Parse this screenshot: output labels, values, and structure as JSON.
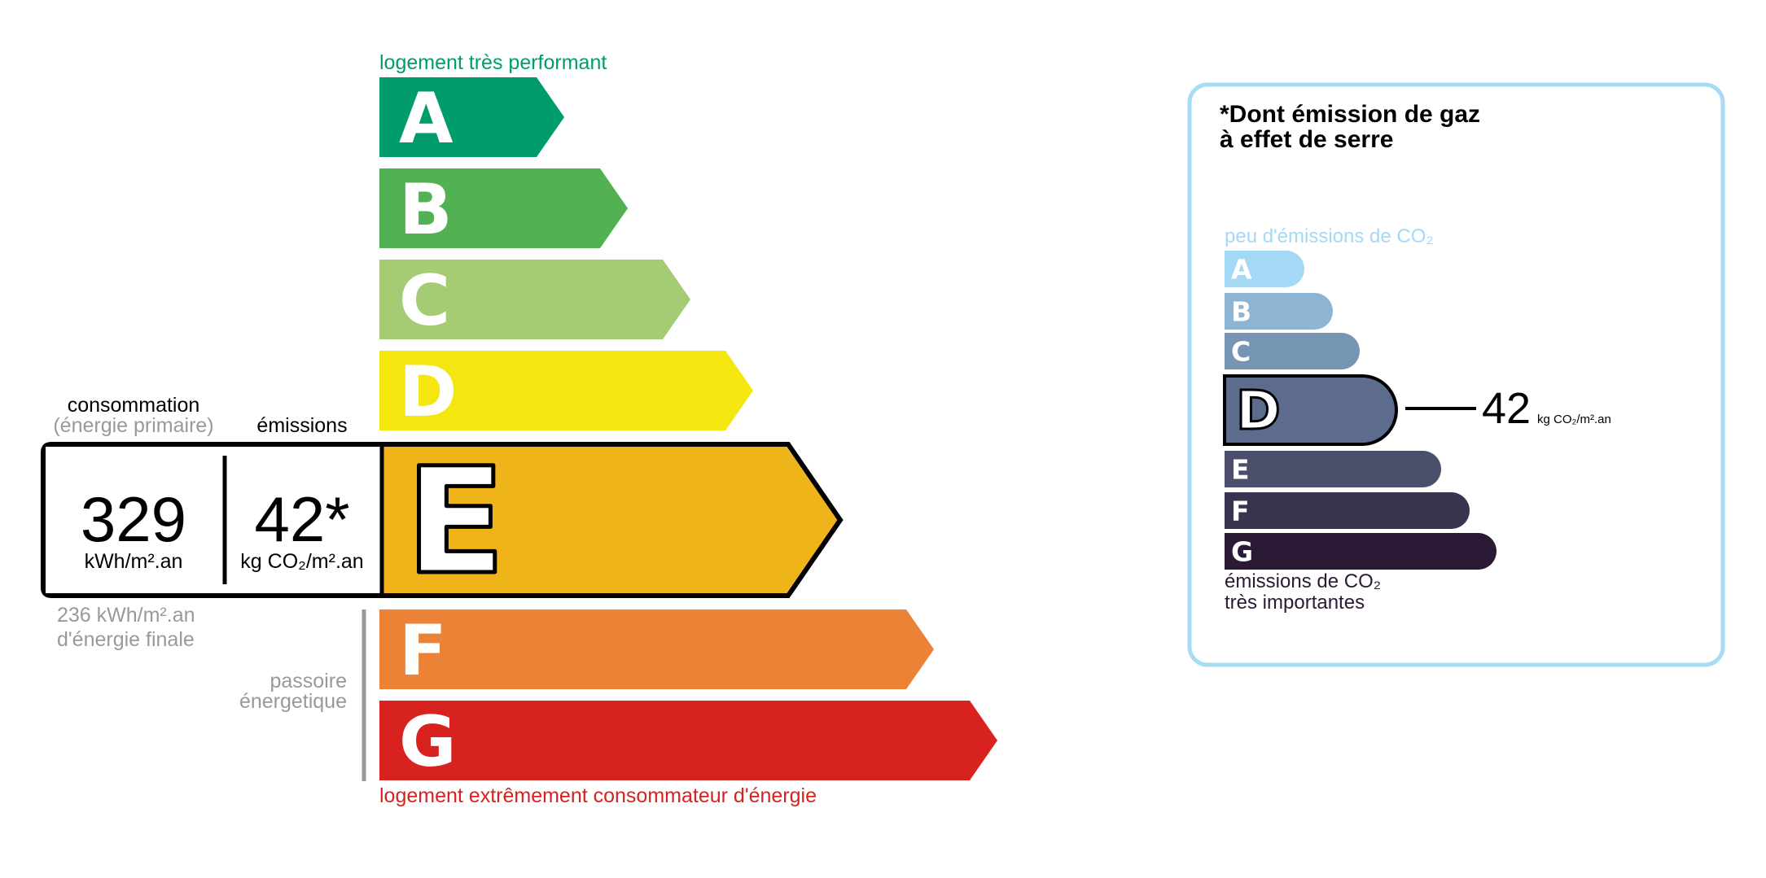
{
  "energy": {
    "top_label": "logement très performant",
    "bottom_label": "logement extrêmement consommateur d'énergie",
    "classes": [
      {
        "letter": "A",
        "color": "#009c6d"
      },
      {
        "letter": "B",
        "color": "#52b153"
      },
      {
        "letter": "C",
        "color": "#a5cc74"
      },
      {
        "letter": "D",
        "color": "#f4e70f"
      },
      {
        "letter": "E",
        "color": "#f0b41b"
      },
      {
        "letter": "F",
        "color": "#eb8235"
      },
      {
        "letter": "G",
        "color": "#d7221f"
      }
    ],
    "current_class": "E",
    "consumption_label": "consommation",
    "consumption_sub": "(énergie primaire)",
    "emissions_label": "émissions",
    "consumption_value": "329",
    "consumption_unit": "kWh/m².an",
    "emissions_value": "42*",
    "emissions_unit": "kg CO₂/m².an",
    "final_energy_value": "236 kWh/m².an",
    "final_energy_label": "d'énergie finale",
    "passoire_line1": "passoire",
    "passoire_line2": "énergetique"
  },
  "ges": {
    "title_line1": "*Dont émission de gaz",
    "title_line2": "à effet de serre",
    "top_label": "peu d'émissions de CO₂",
    "bottom_label_line1": "émissions de CO₂",
    "bottom_label_line2": "très importantes",
    "border_color": "#a8dcf5",
    "classes": [
      {
        "letter": "A",
        "color": "#a4d9f6"
      },
      {
        "letter": "B",
        "color": "#8db4d3"
      },
      {
        "letter": "C",
        "color": "#7695b3"
      },
      {
        "letter": "D",
        "color": "#5d6b8c"
      },
      {
        "letter": "E",
        "color": "#4c4f6c"
      },
      {
        "letter": "F",
        "color": "#38344f"
      },
      {
        "letter": "G",
        "color": "#2a1a35"
      }
    ],
    "current_class": "D",
    "value": "42",
    "unit": "kg CO₂/m².an"
  }
}
